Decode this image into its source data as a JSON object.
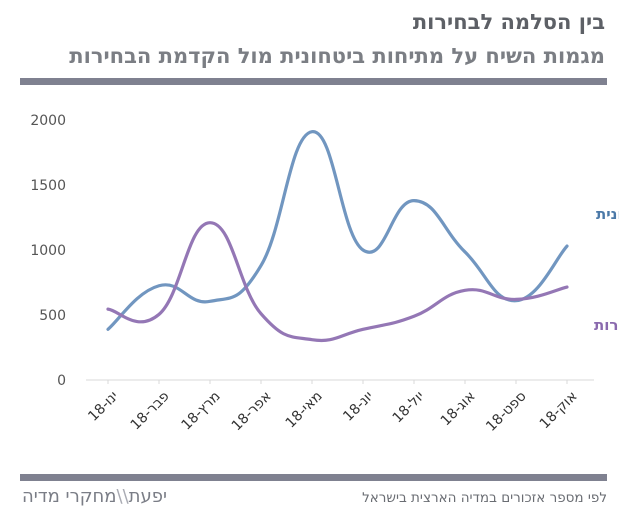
{
  "header": {
    "title": "בין הסלמה לבחירות",
    "subtitle": "מגמות השיח על מתיחות ביטחונית מול הקדמת הבחירות"
  },
  "footer": {
    "source": "לפי מספר אזכורים במדיה הארצית בישראל",
    "logo_left": "יפעת",
    "logo_sep": "\\\\",
    "logo_right": "מחקרי מדיה"
  },
  "colors": {
    "security": "#7196c0",
    "elections": "#9477b5",
    "rule": "#7f8190"
  },
  "chart_data": {
    "type": "line",
    "categories": [
      "ינו-18",
      "פבר-18",
      "מרץ-18",
      "אפר-18",
      "מאי-18",
      "יונ-18",
      "יול-18",
      "אוג-18",
      "ספט-18",
      "אוק-18"
    ],
    "series": [
      {
        "name": "מתיחות ביטחונית",
        "values": [
          390,
          725,
          605,
          880,
          1910,
          1000,
          1380,
          985,
          610,
          1030
        ]
      },
      {
        "name": "הקדמת הבחירות",
        "values": [
          545,
          505,
          1210,
          510,
          310,
          390,
          490,
          690,
          620,
          715
        ]
      }
    ],
    "y_ticks": [
      0,
      500,
      1000,
      1500,
      2000
    ],
    "ylim": [
      0,
      2000
    ],
    "grid": false,
    "title": "בין הסלמה לבחירות"
  }
}
